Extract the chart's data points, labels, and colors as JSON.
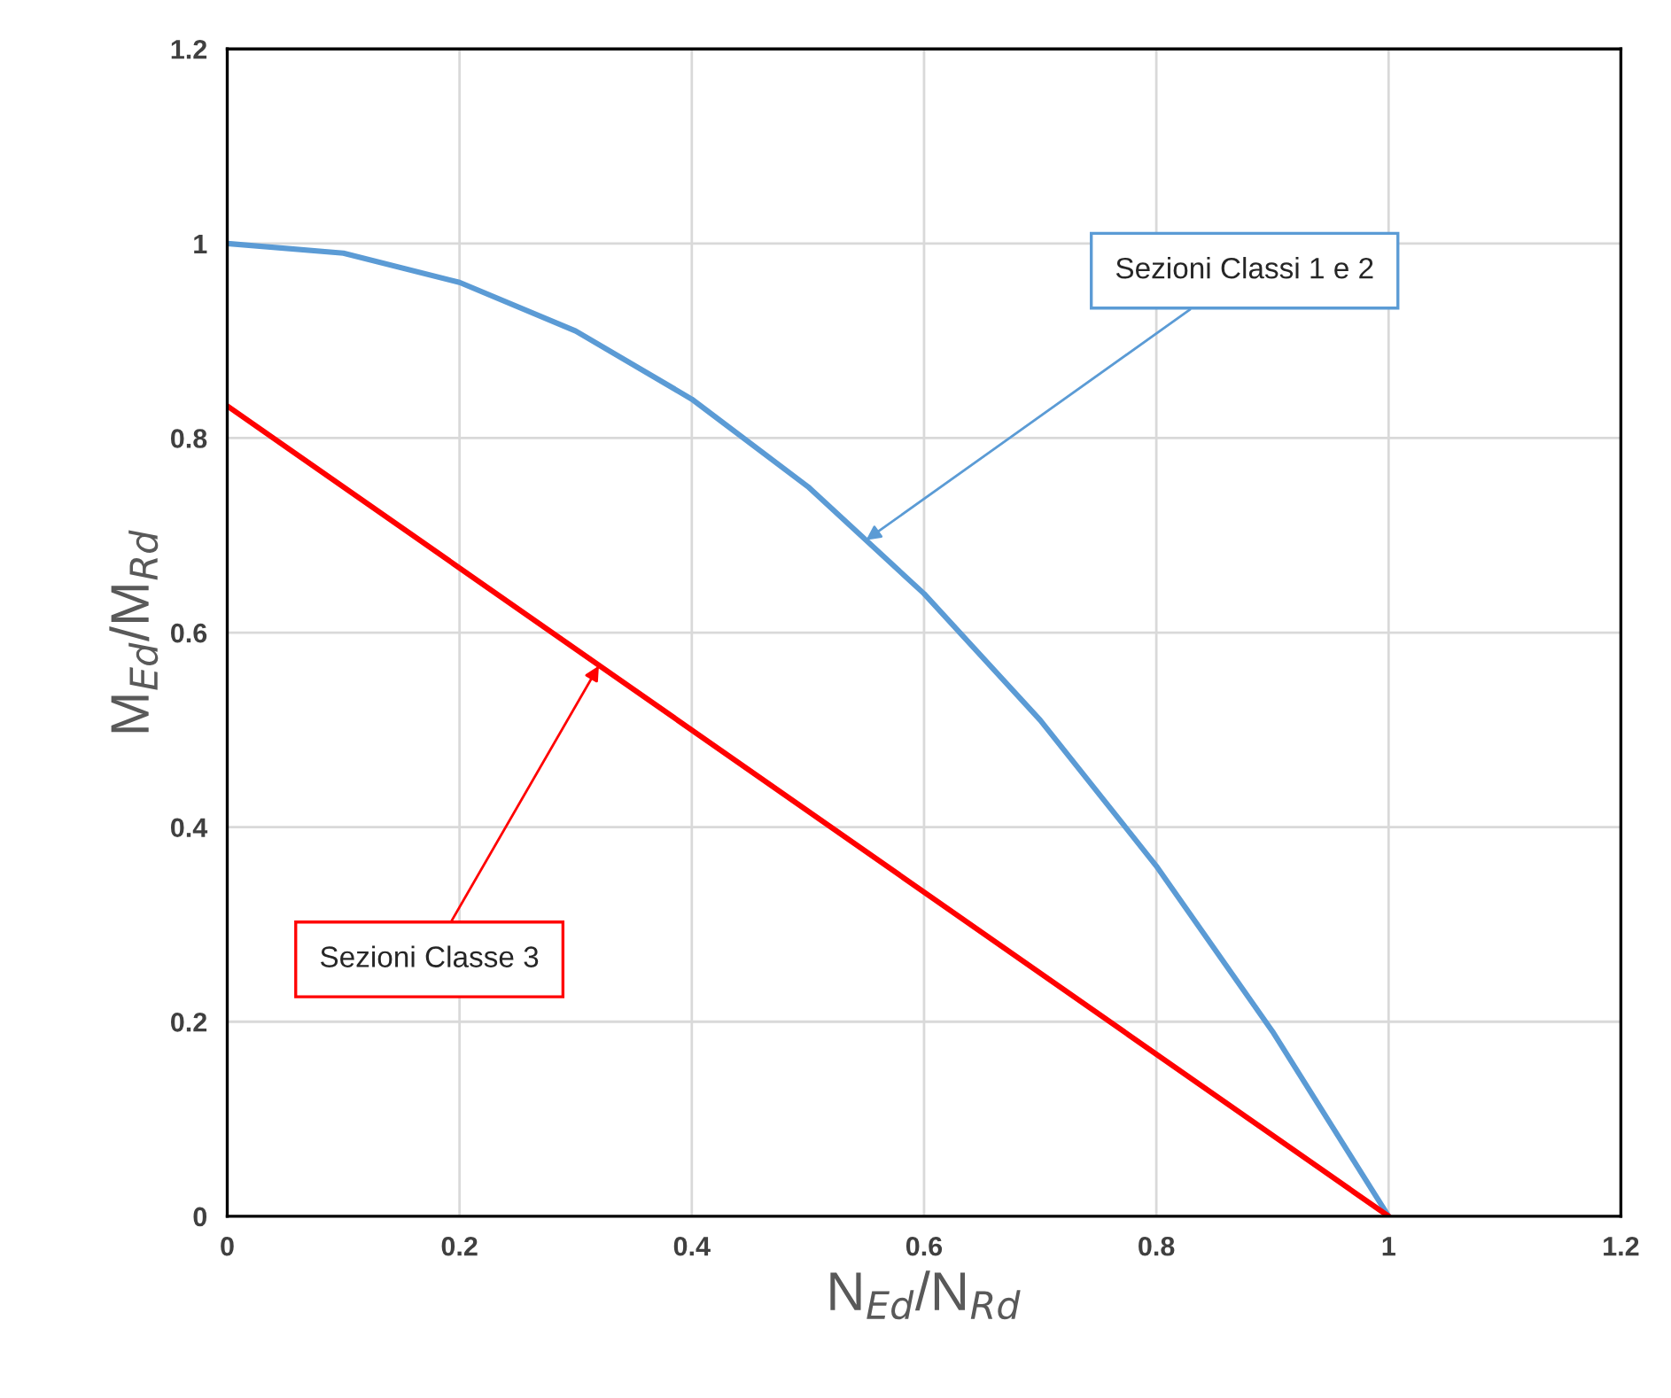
{
  "chart_data": {
    "type": "line",
    "xlabel": "N$_{Ed}$/N$_{Rd}$",
    "ylabel": "M$_{Ed}$/M$_{Rd}$",
    "series": [
      {
        "color": "#5b9bd5",
        "x": [
          0,
          0.1,
          0.2,
          0.3,
          0.4,
          0.5,
          0.6,
          0.7,
          0.8,
          0.9,
          1.0
        ],
        "values": [
          1,
          0.99,
          0.96,
          0.91,
          0.84,
          0.75,
          0.64,
          0.51,
          0.36,
          0.19,
          0
        ]
      },
      {
        "color": "#ff0000",
        "x": [
          0,
          1.0
        ],
        "values": [
          0.833,
          0
        ]
      }
    ],
    "annotations": [
      {
        "text": "Sezioni Classi 1 e 2",
        "x": 0.55,
        "y": 0.695
      },
      {
        "text": "Sezioni Classe 3",
        "x": 0.32,
        "y": 0.566
      }
    ],
    "xlim": [
      0,
      1.2
    ],
    "ylim": [
      0,
      1.2
    ],
    "xticks": [
      0,
      0.2,
      0.4,
      0.6,
      0.8,
      1,
      1.2
    ],
    "yticks": [
      0,
      0.2,
      0.4,
      0.6,
      0.8,
      1,
      1.2
    ],
    "grid": true,
    "marker": "none",
    "line_style": "solid"
  }
}
